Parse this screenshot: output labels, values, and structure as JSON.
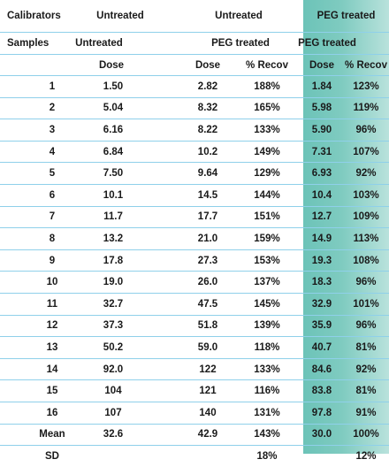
{
  "header": {
    "calibrators_label": "Calibrators",
    "calibrators_untreated": "Untreated",
    "calibrators_untreated_2": "Untreated",
    "calibrators_peg": "PEG treated",
    "samples_label": "Samples",
    "samples_untreated": "Untreated",
    "samples_peg": "PEG treated",
    "samples_peg_2": "PEG treated",
    "col_dose_1": "Dose",
    "col_dose_2": "Dose",
    "col_recov_2": "% Recov",
    "col_dose_3": "Dose",
    "col_recov_3": "% Recov"
  },
  "rows": [
    {
      "label": "1",
      "u_dose": "1.50",
      "p_dose": "2.82",
      "p_recov": "188%",
      "pt_dose": "1.84",
      "pt_recov": "123%"
    },
    {
      "label": "2",
      "u_dose": "5.04",
      "p_dose": "8.32",
      "p_recov": "165%",
      "pt_dose": "5.98",
      "pt_recov": "119%"
    },
    {
      "label": "3",
      "u_dose": "6.16",
      "p_dose": "8.22",
      "p_recov": "133%",
      "pt_dose": "5.90",
      "pt_recov": "96%"
    },
    {
      "label": "4",
      "u_dose": "6.84",
      "p_dose": "10.2",
      "p_recov": "149%",
      "pt_dose": "7.31",
      "pt_recov": "107%"
    },
    {
      "label": "5",
      "u_dose": "7.50",
      "p_dose": "9.64",
      "p_recov": "129%",
      "pt_dose": "6.93",
      "pt_recov": "92%"
    },
    {
      "label": "6",
      "u_dose": "10.1",
      "p_dose": "14.5",
      "p_recov": "144%",
      "pt_dose": "10.4",
      "pt_recov": "103%"
    },
    {
      "label": "7",
      "u_dose": "11.7",
      "p_dose": "17.7",
      "p_recov": "151%",
      "pt_dose": "12.7",
      "pt_recov": "109%"
    },
    {
      "label": "8",
      "u_dose": "13.2",
      "p_dose": "21.0",
      "p_recov": "159%",
      "pt_dose": "14.9",
      "pt_recov": "113%"
    },
    {
      "label": "9",
      "u_dose": "17.8",
      "p_dose": "27.3",
      "p_recov": "153%",
      "pt_dose": "19.3",
      "pt_recov": "108%"
    },
    {
      "label": "10",
      "u_dose": "19.0",
      "p_dose": "26.0",
      "p_recov": "137%",
      "pt_dose": "18.3",
      "pt_recov": "96%"
    },
    {
      "label": "11",
      "u_dose": "32.7",
      "p_dose": "47.5",
      "p_recov": "145%",
      "pt_dose": "32.9",
      "pt_recov": "101%"
    },
    {
      "label": "12",
      "u_dose": "37.3",
      "p_dose": "51.8",
      "p_recov": "139%",
      "pt_dose": "35.9",
      "pt_recov": "96%"
    },
    {
      "label": "13",
      "u_dose": "50.2",
      "p_dose": "59.0",
      "p_recov": "118%",
      "pt_dose": "40.7",
      "pt_recov": "81%"
    },
    {
      "label": "14",
      "u_dose": "92.0",
      "p_dose": "122",
      "p_recov": "133%",
      "pt_dose": "84.6",
      "pt_recov": "92%"
    },
    {
      "label": "15",
      "u_dose": "104",
      "p_dose": "121",
      "p_recov": "116%",
      "pt_dose": "83.8",
      "pt_recov": "81%"
    },
    {
      "label": "16",
      "u_dose": "107",
      "p_dose": "140",
      "p_recov": "131%",
      "pt_dose": "97.8",
      "pt_recov": "91%"
    },
    {
      "label": "Mean",
      "u_dose": "32.6",
      "p_dose": "42.9",
      "p_recov": "143%",
      "pt_dose": "30.0",
      "pt_recov": "100%"
    },
    {
      "label": "SD",
      "u_dose": "",
      "p_dose": "",
      "p_recov": "18%",
      "pt_dose": "",
      "pt_recov": "12%"
    }
  ],
  "colors": {
    "peg_band": "#7fcbc0",
    "row_rule": "#8fd0ea"
  }
}
